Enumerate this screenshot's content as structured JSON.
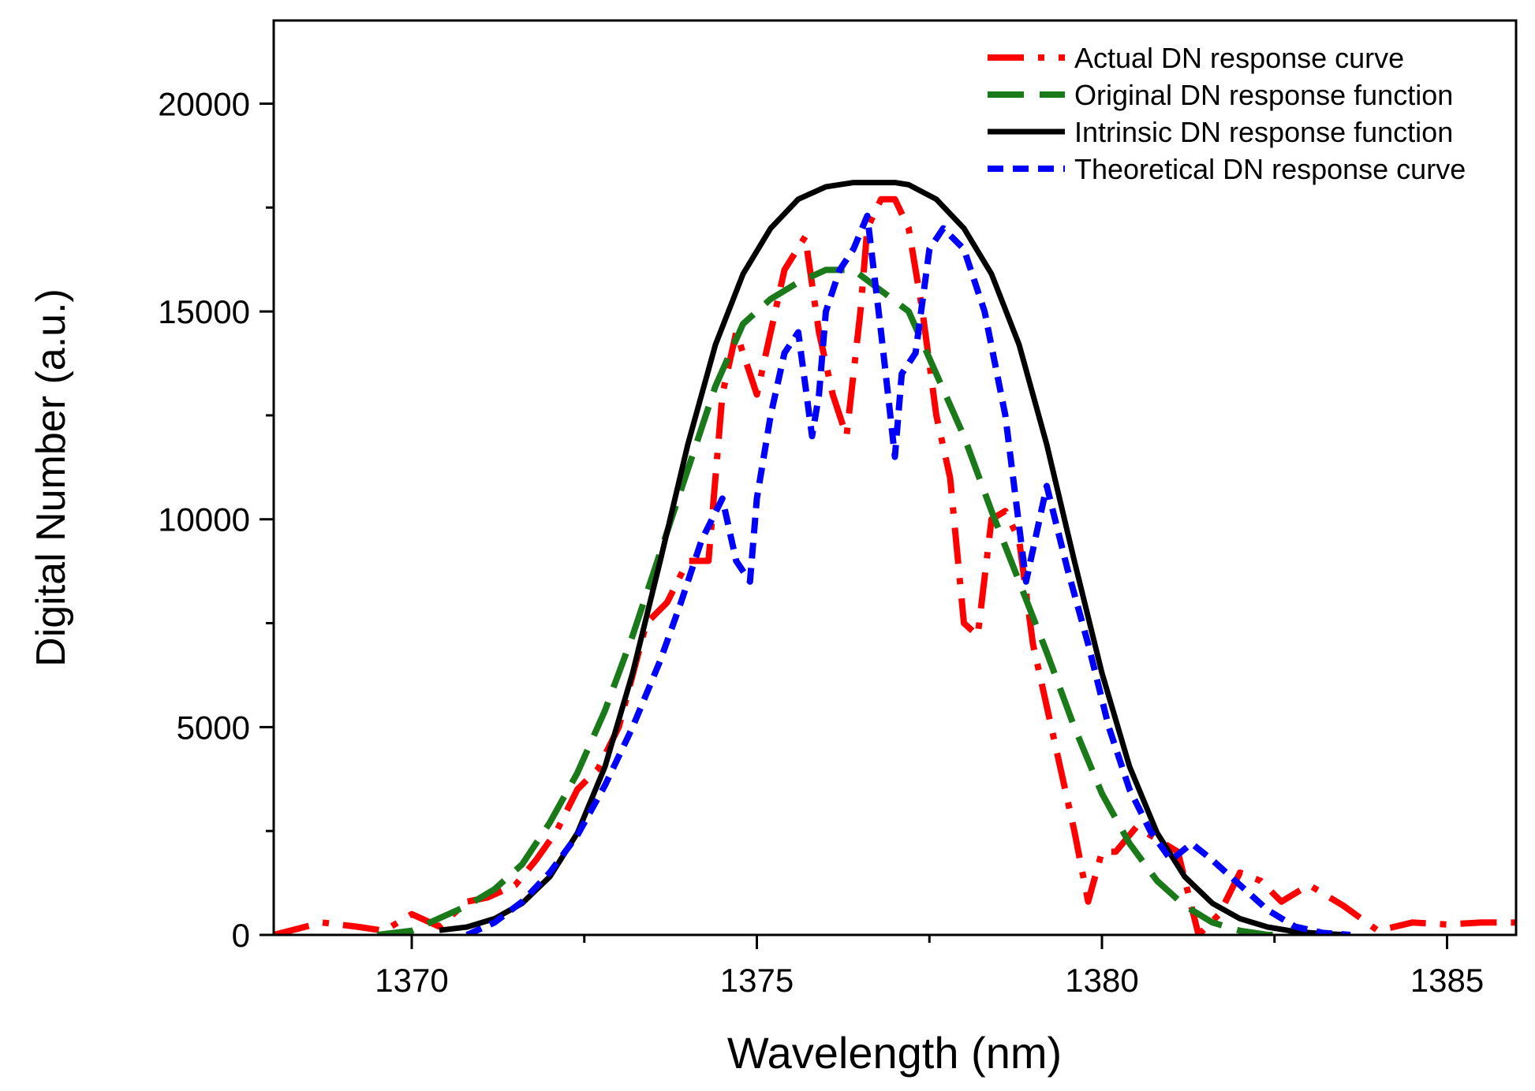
{
  "chart_data": {
    "type": "line",
    "title": "",
    "xlabel": "Wavelength (nm)",
    "ylabel": "Digital Number (a.u.)",
    "xlim": [
      1368,
      1386
    ],
    "ylim": [
      0,
      22000
    ],
    "xticks": [
      1370,
      1375,
      1380,
      1385
    ],
    "yticks": [
      0,
      5000,
      10000,
      15000,
      20000
    ],
    "x_minor_ticks": [
      1372.5,
      1377.5,
      1382.5
    ],
    "y_minor_ticks": [
      2500,
      7500,
      12500,
      17500
    ],
    "grid": false,
    "legend_position": "top-right",
    "series": [
      {
        "name": "Actual DN response curve",
        "color": "#ff0000",
        "style": "dash-dot",
        "x": [
          1368,
          1368.7,
          1369.2,
          1369.6,
          1370,
          1370.4,
          1370.8,
          1371.1,
          1371.5,
          1371.8,
          1372.1,
          1372.4,
          1372.7,
          1373,
          1373.4,
          1373.7,
          1374,
          1374.3,
          1374.5,
          1374.7,
          1375,
          1375.2,
          1375.4,
          1375.7,
          1375.9,
          1376.1,
          1376.3,
          1376.5,
          1376.6,
          1376.8,
          1377.0,
          1377.2,
          1377.4,
          1377.6,
          1377.8,
          1378.0,
          1378.2,
          1378.4,
          1378.6,
          1378.8,
          1379.0,
          1379.2,
          1379.4,
          1379.6,
          1379.8,
          1380,
          1380.2,
          1380.5,
          1380.8,
          1381.1,
          1381.4,
          1381.7,
          1382,
          1382.3,
          1382.6,
          1383,
          1383.5,
          1384,
          1384.5,
          1385,
          1385.5,
          1386
        ],
        "y": [
          0,
          300,
          200,
          100,
          500,
          200,
          800,
          900,
          1200,
          1800,
          2500,
          3500,
          4000,
          5000,
          7500,
          8000,
          9000,
          9000,
          13000,
          14500,
          13000,
          14500,
          16000,
          16800,
          14500,
          13000,
          12000,
          15000,
          17000,
          17700,
          17700,
          17000,
          15000,
          12500,
          11000,
          7500,
          7200,
          10000,
          10200,
          9500,
          7000,
          5500,
          4000,
          2500,
          800,
          2000,
          2000,
          2600,
          2300,
          2000,
          0,
          500,
          1500,
          1300,
          800,
          1200,
          700,
          100,
          300,
          250,
          300,
          300
        ]
      },
      {
        "name": "Original DN response function",
        "color": "#1a7a1a",
        "style": "long-dash",
        "x": [
          1369.5,
          1370,
          1370.4,
          1370.8,
          1371.2,
          1371.6,
          1372.0,
          1372.4,
          1372.8,
          1373.2,
          1373.6,
          1374.0,
          1374.4,
          1374.8,
          1375.2,
          1375.6,
          1376.0,
          1376.4,
          1376.8,
          1377.2,
          1377.6,
          1378.0,
          1378.4,
          1378.8,
          1379.2,
          1379.6,
          1380.0,
          1380.4,
          1380.8,
          1381.2,
          1381.6,
          1382.0,
          1382.4,
          1382.8
        ],
        "y": [
          0,
          100,
          400,
          700,
          1100,
          1700,
          2700,
          3900,
          5400,
          7200,
          9200,
          11200,
          13200,
          14700,
          15300,
          15700,
          16000,
          16000,
          15500,
          15000,
          13500,
          12000,
          10200,
          8500,
          6800,
          5000,
          3400,
          2200,
          1300,
          700,
          300,
          100,
          0,
          0
        ]
      },
      {
        "name": "Intrinsic DN response function",
        "color": "#000000",
        "style": "solid",
        "gaussian": {
          "center": 1377.0,
          "amplitude": 18100,
          "sigma": 2.05
        },
        "x": [
          1370.4,
          1370.8,
          1371.2,
          1371.6,
          1372.0,
          1372.4,
          1372.8,
          1373.2,
          1373.6,
          1374.0,
          1374.4,
          1374.8,
          1375.2,
          1375.6,
          1376.0,
          1376.4,
          1376.8,
          1377.0,
          1377.2,
          1377.6,
          1378.0,
          1378.4,
          1378.8,
          1379.2,
          1379.6,
          1380.0,
          1380.4,
          1380.8,
          1381.2,
          1381.6,
          1382.0,
          1382.4,
          1382.8,
          1383.2,
          1383.6
        ],
        "y": [
          110,
          190,
          390,
          760,
          1400,
          2450,
          4050,
          6300,
          9000,
          11800,
          14200,
          15900,
          17000,
          17700,
          18000,
          18100,
          18100,
          18100,
          18050,
          17700,
          17000,
          15900,
          14200,
          11800,
          9000,
          6300,
          4050,
          2450,
          1400,
          760,
          390,
          190,
          80,
          30,
          0
        ]
      },
      {
        "name": "Theoretical DN response curve",
        "color": "#0000ff",
        "style": "short-dash",
        "x": [
          1370.8,
          1371.2,
          1371.6,
          1372.0,
          1372.4,
          1372.8,
          1373.2,
          1373.6,
          1373.9,
          1374.2,
          1374.5,
          1374.7,
          1374.9,
          1375.0,
          1375.2,
          1375.4,
          1375.6,
          1375.8,
          1375.9,
          1376.0,
          1376.2,
          1376.4,
          1376.6,
          1376.8,
          1376.9,
          1377.0,
          1377.1,
          1377.3,
          1377.5,
          1377.7,
          1378.0,
          1378.3,
          1378.6,
          1378.9,
          1379.2,
          1379.5,
          1379.8,
          1380.1,
          1380.4,
          1380.7,
          1381.0,
          1381.3,
          1381.6,
          1382.0,
          1382.4,
          1382.8,
          1383.2,
          1383.6
        ],
        "y": [
          0,
          300,
          800,
          1500,
          2400,
          3600,
          5000,
          6600,
          8000,
          9500,
          10500,
          9000,
          8500,
          10500,
          12500,
          14000,
          14500,
          12000,
          13000,
          15000,
          16000,
          16500,
          17300,
          14500,
          13000,
          11500,
          13500,
          14000,
          16500,
          17000,
          16500,
          15000,
          12500,
          8500,
          10800,
          8800,
          7000,
          5000,
          3500,
          2500,
          1800,
          2200,
          1800,
          1200,
          600,
          200,
          50,
          0
        ]
      }
    ]
  }
}
